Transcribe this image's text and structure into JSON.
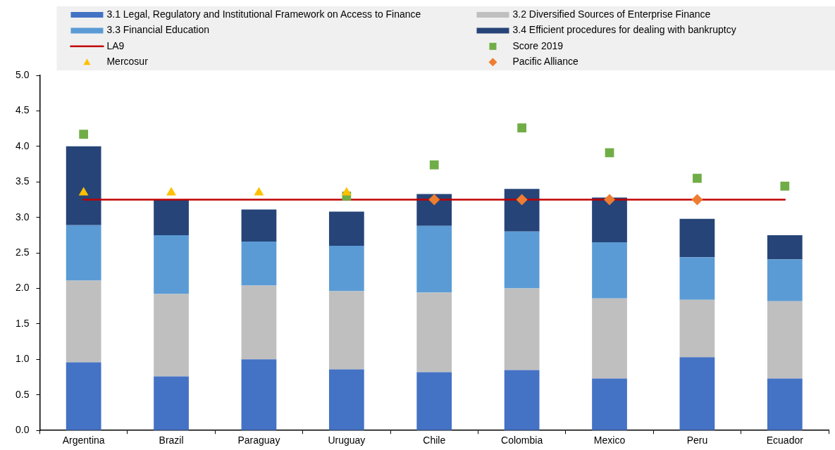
{
  "chart_data": {
    "type": "bar",
    "stacked": true,
    "legend": "top",
    "categories": [
      "Argentina",
      "Brazil",
      "Paraguay",
      "Uruguay",
      "Chile",
      "Colombia",
      "Mexico",
      "Peru",
      "Ecuador"
    ],
    "ylim": [
      0,
      5
    ],
    "yticks": [
      {
        "value": 0,
        "label": "0.0"
      },
      0.5,
      {
        "value": 1,
        "label": "1.0"
      },
      1.5,
      {
        "value": 2,
        "label": "2.0"
      },
      2.5,
      {
        "value": 3,
        "label": "3.0"
      },
      3.5,
      {
        "value": 4,
        "label": "4.0"
      },
      4.5,
      {
        "value": 5,
        "label": "5.0"
      }
    ],
    "series": [
      {
        "name": "3.1 Legal, Regulatory and Institutional Framework on Access to Finance",
        "color": "#4472c4",
        "values": [
          0.96,
          0.76,
          1.0,
          0.86,
          0.82,
          0.85,
          0.73,
          1.03,
          0.73
        ]
      },
      {
        "name": "3.2 Diversified Sources of Enterprise Finance",
        "color": "#bfbfbf",
        "values": [
          1.15,
          1.16,
          1.04,
          1.1,
          1.12,
          1.15,
          1.13,
          0.81,
          1.09
        ]
      },
      {
        "name": "3.3 Financial Education",
        "color": "#5b9bd5",
        "values": [
          0.78,
          0.83,
          0.62,
          0.64,
          0.94,
          0.8,
          0.79,
          0.6,
          0.59
        ]
      },
      {
        "name": "3.4 Efficient procedures for dealing with bankruptcy",
        "color": "#264478",
        "values": [
          1.11,
          0.5,
          0.45,
          0.48,
          0.45,
          0.6,
          0.63,
          0.54,
          0.34
        ]
      },
      {
        "name": "LA9",
        "type": "line",
        "color": "#c00000",
        "values": [
          3.25,
          3.25,
          3.25,
          3.25,
          3.25,
          3.25,
          3.25,
          3.25,
          3.25
        ]
      },
      {
        "name": "Score 2019",
        "type": "scatter",
        "marker": "square",
        "color": "#70ad47",
        "x": [
          "Argentina",
          "Uruguay",
          "Chile",
          "Colombia",
          "Mexico",
          "Peru",
          "Ecuador"
        ],
        "values": [
          4.17,
          3.3,
          3.74,
          4.26,
          3.91,
          3.55,
          3.44
        ]
      },
      {
        "name": "Mercosur",
        "type": "scatter",
        "marker": "triangle",
        "color": "#ffc000",
        "x": [
          "Argentina",
          "Brazil",
          "Paraguay",
          "Uruguay"
        ],
        "values": [
          3.35,
          3.35,
          3.35,
          3.35
        ]
      },
      {
        "name": "Pacific Alliance",
        "type": "scatter",
        "marker": "diamond",
        "color": "#ed7d31",
        "x": [
          "Chile",
          "Colombia",
          "Mexico",
          "Peru"
        ],
        "values": [
          3.25,
          3.25,
          3.25,
          3.25
        ]
      }
    ]
  }
}
